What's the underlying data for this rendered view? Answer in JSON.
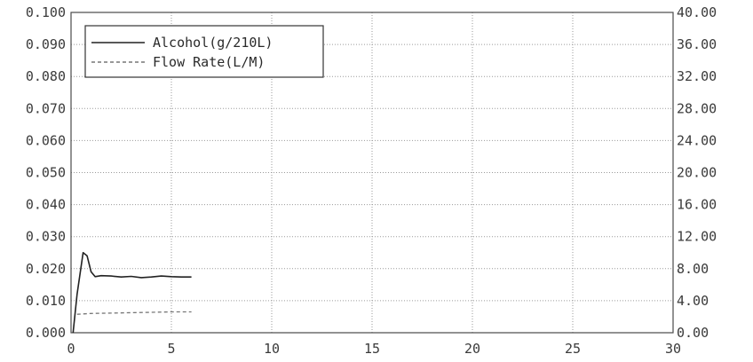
{
  "chart_data": {
    "type": "line",
    "title": "",
    "xlabel": "",
    "ylabel": "",
    "y2label": "",
    "xlim": [
      0,
      30
    ],
    "ylim": [
      0,
      0.1
    ],
    "y2lim": [
      0,
      40
    ],
    "grid": true,
    "legend_position": "top-left",
    "x_ticks": [
      "0",
      "5",
      "10",
      "15",
      "20",
      "25",
      "30"
    ],
    "y_ticks": [
      "0.000",
      "0.010",
      "0.020",
      "0.030",
      "0.040",
      "0.050",
      "0.060",
      "0.070",
      "0.080",
      "0.090",
      "0.100"
    ],
    "y2_ticks": [
      "0.00",
      "4.00",
      "8.00",
      "12.00",
      "16.00",
      "20.00",
      "24.00",
      "28.00",
      "32.00",
      "36.00",
      "40.00"
    ],
    "series": [
      {
        "name": "Alcohol(g/210L)",
        "axis": "left",
        "style": "solid",
        "color": "#222222",
        "x": [
          0.1,
          0.3,
          0.6,
          0.8,
          1.0,
          1.2,
          1.5,
          2.0,
          2.5,
          3.0,
          3.5,
          4.0,
          4.5,
          5.0,
          5.5,
          6.0
        ],
        "y": [
          0.0,
          0.012,
          0.025,
          0.024,
          0.019,
          0.0175,
          0.0178,
          0.0177,
          0.0174,
          0.0176,
          0.0172,
          0.0174,
          0.0177,
          0.0175,
          0.0174,
          0.0174
        ]
      },
      {
        "name": "Flow Rate(L/M)",
        "axis": "right",
        "style": "dashed",
        "color": "#777777",
        "x": [
          0.3,
          1.0,
          2.0,
          3.0,
          4.0,
          5.0,
          6.0
        ],
        "y": [
          2.3,
          2.4,
          2.45,
          2.5,
          2.55,
          2.6,
          2.6
        ]
      }
    ]
  }
}
